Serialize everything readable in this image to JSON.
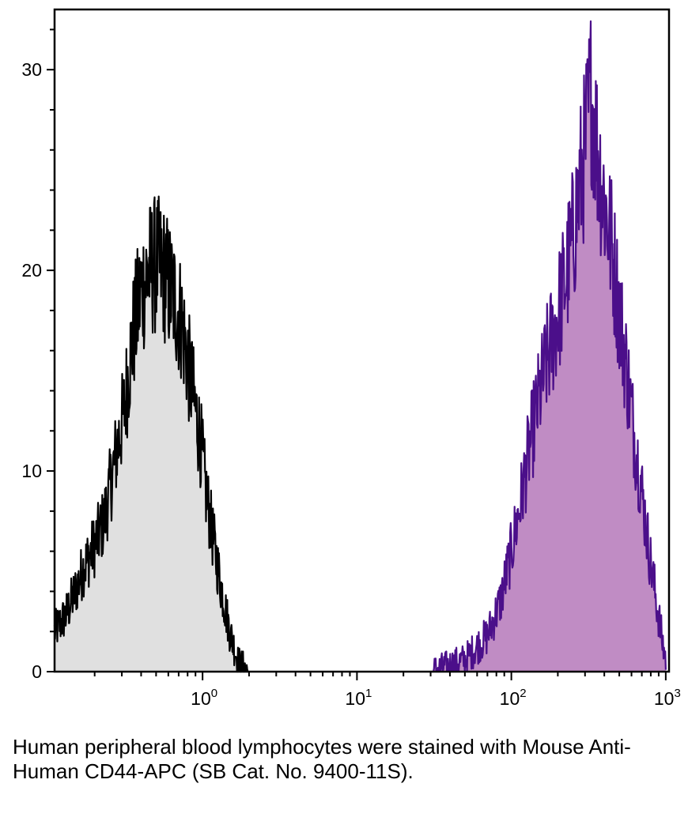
{
  "chart_data": {
    "type": "area",
    "title": "",
    "xlabel": "",
    "ylabel": "",
    "x_scale": "log",
    "xlim": [
      0.11,
      1050
    ],
    "ylim": [
      0,
      33
    ],
    "x_ticks": [
      {
        "value": 1,
        "base": "10",
        "exp": "0"
      },
      {
        "value": 10,
        "base": "10",
        "exp": "1"
      },
      {
        "value": 100,
        "base": "10",
        "exp": "2"
      },
      {
        "value": 1000,
        "base": "10",
        "exp": "3"
      }
    ],
    "y_ticks": [
      {
        "value": 0,
        "label": "0"
      },
      {
        "value": 10,
        "label": "10"
      },
      {
        "value": 20,
        "label": "20"
      },
      {
        "value": 30,
        "label": "30"
      }
    ],
    "grid": false,
    "legend": "none",
    "series": [
      {
        "fill": "#e0e0e0",
        "stroke": "#000000",
        "x": [
          0.11,
          0.13,
          0.15,
          0.17,
          0.2,
          0.23,
          0.27,
          0.31,
          0.35,
          0.4,
          0.45,
          0.5,
          0.55,
          0.6,
          0.66,
          0.73,
          0.8,
          0.88,
          0.97,
          1.05,
          1.15,
          1.3,
          1.5,
          1.7,
          2.0
        ],
        "y": [
          2.0,
          2.8,
          4.0,
          5.2,
          6.3,
          7.5,
          10.5,
          13.0,
          16.5,
          19.0,
          20.0,
          20.3,
          20.0,
          19.3,
          18.5,
          17.5,
          15.5,
          13.5,
          11.5,
          9.0,
          7.0,
          4.5,
          2.0,
          0.5,
          0.0
        ]
      },
      {
        "fill": "#c08cc4",
        "stroke": "#4b0f8a",
        "x": [
          30,
          50,
          70,
          85,
          100,
          115,
          130,
          150,
          170,
          190,
          210,
          230,
          250,
          270,
          300,
          330,
          360,
          400,
          450,
          500,
          560,
          620,
          700,
          780,
          870,
          950,
          1000
        ],
        "y": [
          0.0,
          0.6,
          1.8,
          3.5,
          6.0,
          8.5,
          11.0,
          13.5,
          15.5,
          17.0,
          18.5,
          20.0,
          21.5,
          23.5,
          26.0,
          29.0,
          26.0,
          23.5,
          21.0,
          18.0,
          15.0,
          12.0,
          9.0,
          6.0,
          3.5,
          1.5,
          0.6
        ]
      }
    ]
  },
  "caption": "Human peripheral blood lymphocytes were stained with Mouse Anti-Human CD44-APC (SB Cat. No. 9400-11S)."
}
